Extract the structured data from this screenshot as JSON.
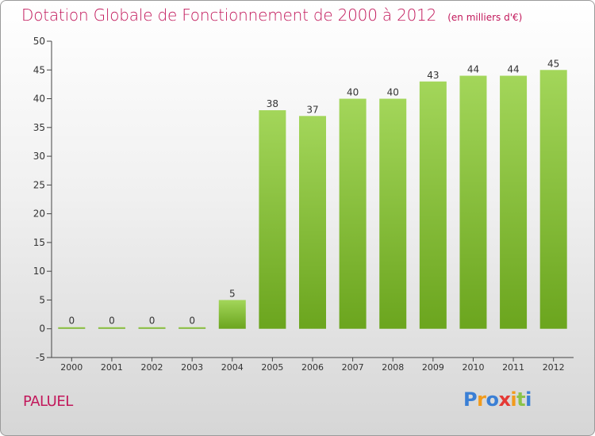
{
  "title": "Dotation Globale de Fonctionnement de 2000 à 2012",
  "unit_label": "(en milliers d'€)",
  "commune": "PALUEL",
  "logo": {
    "text": "Proxiti",
    "letter_colors": [
      "#3a7fd5",
      "#f29b1c",
      "#3a7fd5",
      "#e53935",
      "#f29b1c",
      "#8bc34a",
      "#3a7fd5"
    ]
  },
  "colors": {
    "bar_top": "#a3d65a",
    "bar_bottom": "#6ba51e",
    "text": "#c2185b"
  },
  "chart_data": {
    "type": "bar",
    "categories": [
      "2000",
      "2001",
      "2002",
      "2003",
      "2004",
      "2005",
      "2006",
      "2007",
      "2008",
      "2009",
      "2010",
      "2011",
      "2012"
    ],
    "values": [
      0,
      0,
      0,
      0,
      5,
      38,
      37,
      40,
      40,
      43,
      44,
      44,
      45
    ],
    "value_labels": [
      "0",
      "0",
      "0",
      "0",
      "5",
      "38",
      "37",
      "40",
      "40",
      "43",
      "44",
      "44",
      "45"
    ],
    "yticks": [
      "-5",
      "0",
      "5",
      "10",
      "15",
      "20",
      "25",
      "30",
      "35",
      "40",
      "45",
      "50"
    ],
    "ylim": [
      -5,
      50
    ],
    "grid": false,
    "title": "Dotation Globale de Fonctionnement de 2000 à 2012",
    "xlabel": "",
    "ylabel": ""
  }
}
